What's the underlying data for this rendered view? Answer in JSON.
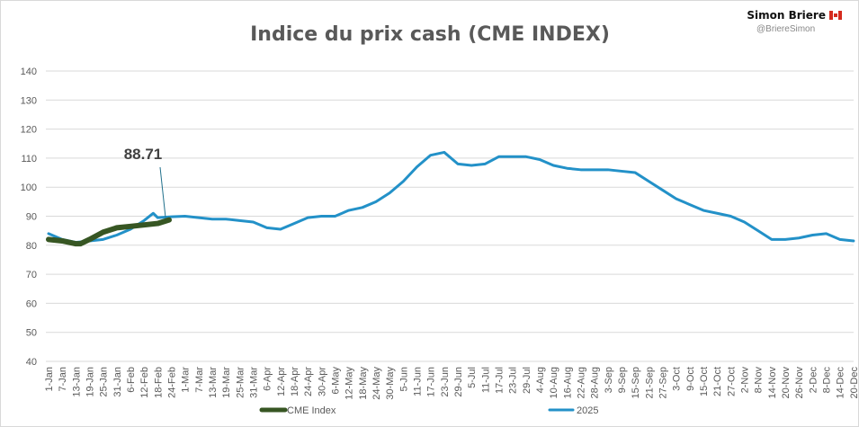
{
  "author": {
    "name": "Simon Briere",
    "handle": "@BriereSimon",
    "flag_icon": "canada-flag-icon"
  },
  "chart_data": {
    "type": "line",
    "title": "Indice du prix cash (CME INDEX)",
    "xlabel": "",
    "ylabel": "",
    "ylim": [
      40,
      140
    ],
    "yticks": [
      40,
      50,
      60,
      70,
      80,
      90,
      100,
      110,
      120,
      130,
      140
    ],
    "grid": true,
    "legend_placement": "bottom",
    "x_tick_labels": [
      "1-Jan",
      "7-Jan",
      "13-Jan",
      "19-Jan",
      "25-Jan",
      "31-Jan",
      "6-Feb",
      "12-Feb",
      "18-Feb",
      "24-Feb",
      "1-Mar",
      "7-Mar",
      "13-Mar",
      "19-Mar",
      "25-Mar",
      "31-Mar",
      "6-Apr",
      "12-Apr",
      "18-Apr",
      "24-Apr",
      "30-Apr",
      "6-May",
      "12-May",
      "18-May",
      "24-May",
      "30-May",
      "5-Jun",
      "11-Jun",
      "17-Jun",
      "23-Jun",
      "29-Jun",
      "5-Jul",
      "11-Jul",
      "17-Jul",
      "23-Jul",
      "29-Jul",
      "4-Aug",
      "10-Aug",
      "16-Aug",
      "22-Aug",
      "28-Aug",
      "3-Sep",
      "9-Sep",
      "15-Sep",
      "21-Sep",
      "27-Sep",
      "3-Oct",
      "9-Oct",
      "15-Oct",
      "21-Oct",
      "27-Oct",
      "2-Nov",
      "8-Nov",
      "14-Nov",
      "20-Nov",
      "26-Nov",
      "2-Dec",
      "8-Dec",
      "14-Dec",
      "20-Dec"
    ],
    "x_day_of_year_per_tick": 6,
    "series": [
      {
        "name": "CME Index",
        "color": "#375623",
        "day": [
          0,
          6,
          12,
          14,
          18,
          24,
          30,
          36,
          42,
          48,
          53
        ],
        "values": [
          82,
          81.5,
          80.5,
          80.5,
          82,
          84.5,
          86,
          86.5,
          87,
          87.5,
          88.71
        ]
      },
      {
        "name": "2025",
        "color": "#2391c8",
        "day": [
          0,
          6,
          12,
          18,
          24,
          30,
          36,
          42,
          46,
          48,
          54,
          60,
          66,
          72,
          78,
          84,
          90,
          96,
          102,
          108,
          114,
          120,
          126,
          132,
          138,
          144,
          150,
          156,
          162,
          168,
          174,
          180,
          186,
          192,
          198,
          204,
          210,
          216,
          222,
          228,
          234,
          240,
          246,
          252,
          258,
          264,
          270,
          276,
          282,
          288,
          294,
          300,
          306,
          312,
          318,
          324,
          330,
          336,
          342,
          348,
          354,
          363
        ],
        "values": [
          84,
          82,
          81,
          81.5,
          82,
          83.5,
          85.5,
          88.5,
          91,
          89.5,
          89.8,
          90,
          89.5,
          89,
          89,
          88.5,
          88,
          86,
          85.5,
          87.5,
          89.5,
          90,
          90,
          92,
          93,
          95,
          98,
          102,
          107,
          111,
          112,
          108,
          107.5,
          108,
          110.5,
          110.5,
          110.5,
          109.5,
          107.5,
          106.5,
          106,
          106,
          106,
          105.5,
          105,
          102,
          99,
          96,
          94,
          92,
          91,
          90,
          88,
          85,
          82,
          82,
          82.5,
          83.5,
          84,
          82,
          81.5
        ]
      }
    ],
    "annotations": [
      {
        "text": "88.71",
        "series": "CME Index",
        "day": 53
      }
    ]
  }
}
